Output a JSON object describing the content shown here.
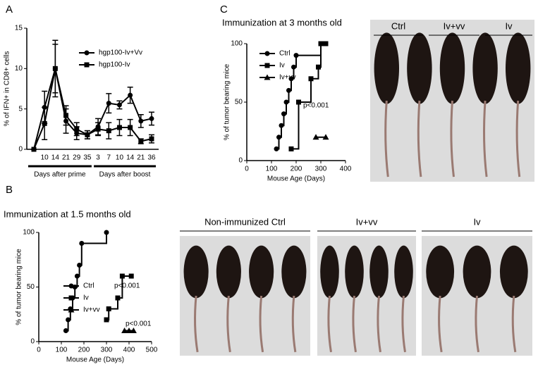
{
  "panels": [
    "A",
    "B",
    "C"
  ],
  "photos": {
    "top": [
      "Ctrl",
      "Iv+vv",
      "Iv"
    ],
    "bottom": [
      "Non-immunized Ctrl",
      "Iv+vv",
      "Iv"
    ]
  },
  "chart_data": [
    {
      "type": "line",
      "ylabel": "% of IFN+ in CD8+ cells",
      "categories": [
        null,
        "10",
        "14",
        "21",
        "29",
        "35",
        "3",
        "7",
        "10",
        "14",
        "21",
        "36"
      ],
      "groups": [
        "Days after prime",
        "Days after boost"
      ],
      "ylim": [
        0,
        15
      ],
      "yticks": [
        0,
        5,
        10,
        15
      ],
      "series": [
        {
          "name": "hgp100-Iv+Vv",
          "color": "#000000",
          "marker": "circle",
          "values": [
            0,
            5.2,
            10,
            3.5,
            2,
            1.8,
            2.8,
            5.7,
            5.5,
            6.7,
            3.5,
            3.8
          ],
          "errors": [
            0,
            2,
            3.5,
            1.5,
            0.8,
            0.5,
            1,
            1.2,
            0.5,
            1,
            0.8,
            0.8
          ]
        },
        {
          "name": "hgp100-Iv",
          "color": "#000000",
          "marker": "square",
          "values": [
            0,
            3.2,
            10,
            4.2,
            2.5,
            1.8,
            2.5,
            2.3,
            2.7,
            2.7,
            1,
            1.3
          ],
          "errors": [
            0,
            2,
            3,
            1.2,
            0.8,
            0.5,
            0.8,
            1,
            1,
            1,
            0.3,
            0.5
          ]
        }
      ]
    },
    {
      "type": "step",
      "title": "Immunization at 1.5 months old",
      "ylabel": "% of tumor bearing mice",
      "xlabel": "Mouse Age (Days)",
      "xlim": [
        0,
        500
      ],
      "xticks": [
        0,
        100,
        200,
        300,
        400,
        500
      ],
      "ylim": [
        0,
        100
      ],
      "yticks": [
        0,
        50,
        100
      ],
      "annotations": [
        "p<0.001",
        "p<0.001"
      ],
      "series": [
        {
          "name": "Ctrl",
          "color": "#000000",
          "marker": "circle",
          "x": [
            120,
            130,
            140,
            150,
            160,
            170,
            180,
            190,
            300
          ],
          "values": [
            10,
            20,
            30,
            40,
            50,
            60,
            70,
            90,
            100
          ]
        },
        {
          "name": "Iv",
          "color": "#000000",
          "marker": "square",
          "x": [
            300,
            310,
            350,
            370,
            410
          ],
          "values": [
            20,
            30,
            40,
            60,
            60
          ]
        },
        {
          "name": "Iv+vv",
          "color": "#000000",
          "marker": "triangle",
          "x": [
            380,
            400,
            420
          ],
          "values": [
            10,
            10,
            10
          ]
        }
      ]
    },
    {
      "type": "step",
      "title": "Immunization at 3 months old",
      "ylabel": "% of tumor bearing mice",
      "xlabel": "Mouse Age (Days)",
      "xlim": [
        0,
        400
      ],
      "xticks": [
        0,
        100,
        200,
        300,
        400
      ],
      "ylim": [
        0,
        100
      ],
      "yticks": [
        0,
        50,
        100
      ],
      "annotations": [
        "p<0.001"
      ],
      "series": [
        {
          "name": "Ctrl",
          "color": "#000000",
          "marker": "circle",
          "x": [
            120,
            130,
            140,
            150,
            160,
            170,
            180,
            190,
            200,
            300
          ],
          "values": [
            10,
            20,
            30,
            40,
            50,
            60,
            70,
            80,
            90,
            100
          ]
        },
        {
          "name": "Iv",
          "color": "#000000",
          "marker": "square",
          "x": [
            180,
            210,
            260,
            290,
            300,
            320
          ],
          "values": [
            10,
            50,
            70,
            80,
            100,
            100
          ]
        },
        {
          "name": "Iv+vv",
          "color": "#000000",
          "marker": "triangle",
          "x": [
            280,
            320
          ],
          "values": [
            20,
            20
          ]
        }
      ]
    }
  ]
}
